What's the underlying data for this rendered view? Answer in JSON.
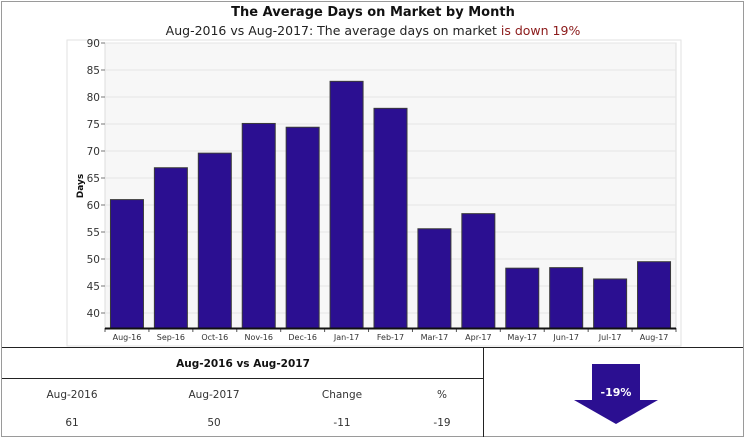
{
  "chart_data": {
    "type": "bar",
    "title": "The Average Days on Market by Month",
    "subtitle_prefix": "Aug-2016 vs Aug-2017: The average days on market ",
    "subtitle_highlight": "is down 19%",
    "ylabel": "Days",
    "xlabel": "",
    "ylim": [
      37,
      90
    ],
    "yticks": [
      40,
      45,
      50,
      55,
      60,
      65,
      70,
      75,
      80,
      85,
      90
    ],
    "grid": true,
    "categories": [
      "Aug-16",
      "Sep-16",
      "Oct-16",
      "Nov-16",
      "Dec-16",
      "Jan-17",
      "Feb-17",
      "Mar-17",
      "Apr-17",
      "May-17",
      "Jun-17",
      "Jul-17",
      "Aug-17"
    ],
    "values": [
      61,
      66.9,
      69.6,
      75.1,
      74.4,
      82.9,
      77.9,
      55.6,
      58.4,
      48.3,
      48.4,
      46.3,
      49.5
    ],
    "bar_color": "#2b0f91"
  },
  "summary": {
    "title": "Aug-2016 vs Aug-2017",
    "headers": [
      "Aug-2016",
      "Aug-2017",
      "Change",
      "%"
    ],
    "values": [
      "61",
      "50",
      "-11",
      "-19"
    ]
  },
  "badge": {
    "label": "-19%",
    "color": "#2b0f91",
    "icon": "down-arrow-icon"
  }
}
